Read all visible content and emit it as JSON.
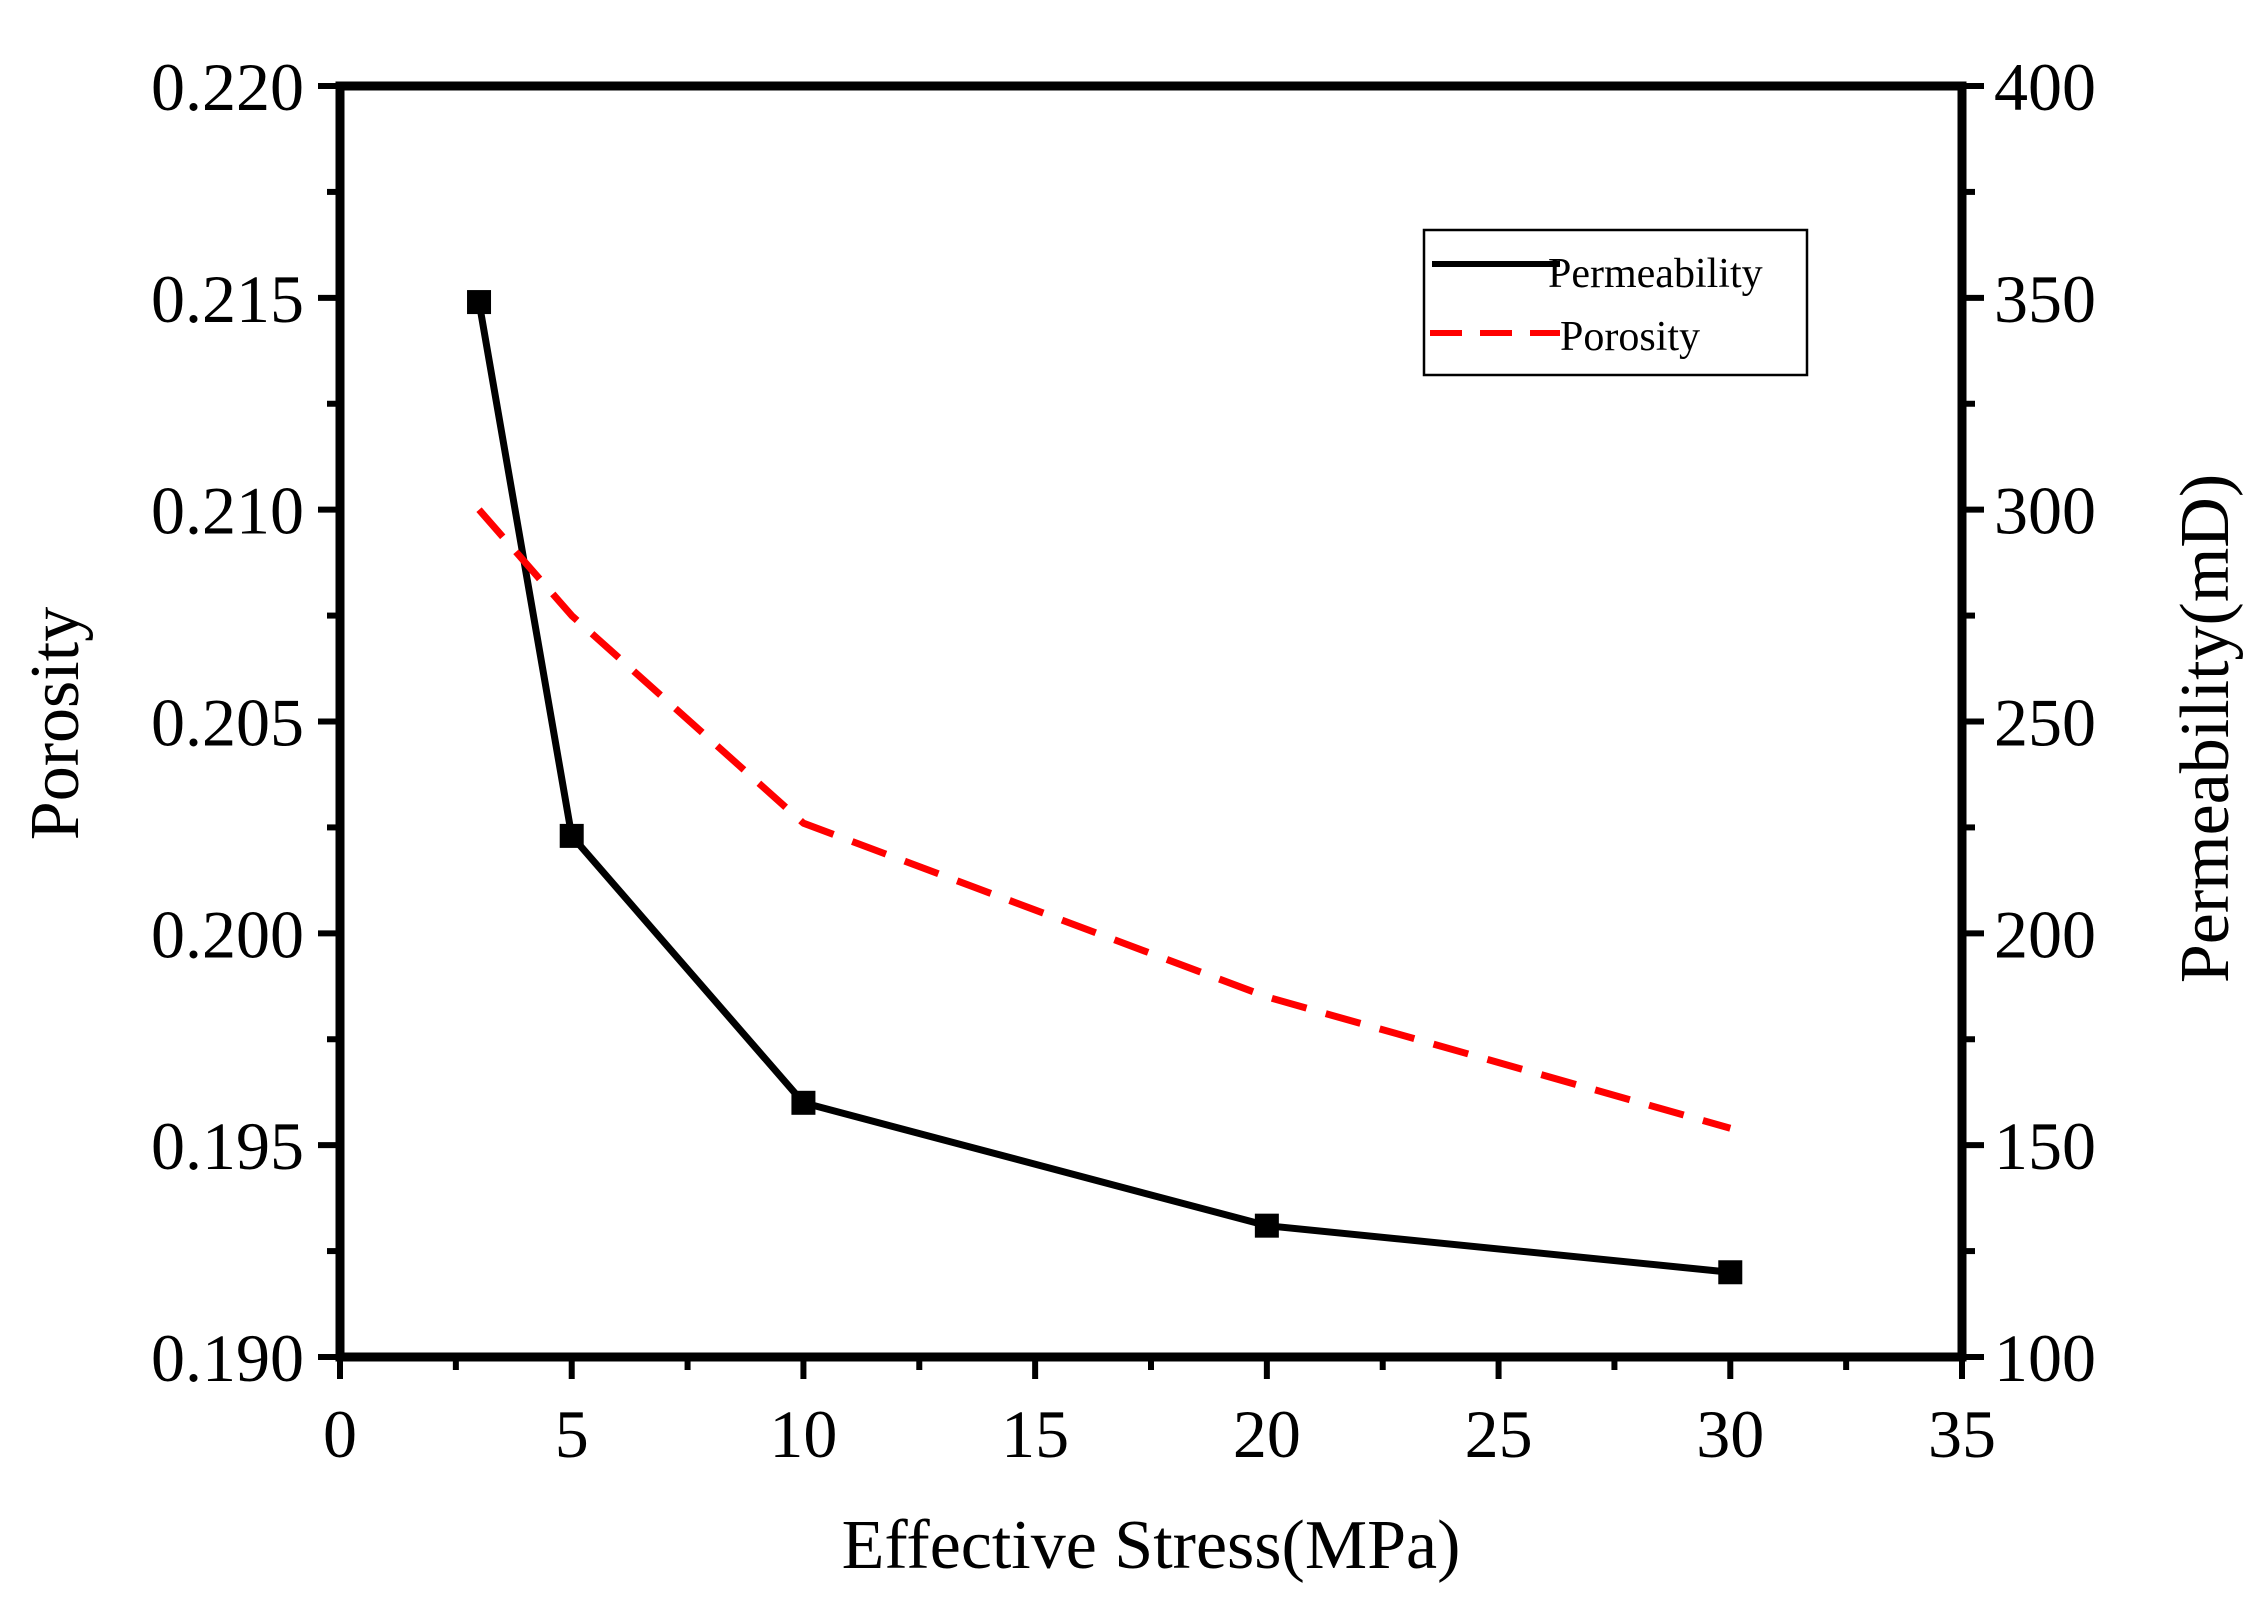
{
  "chart_data": {
    "type": "line",
    "title": "",
    "xlabel": "Effective Stress(MPa)",
    "ylabel_left": "Porosity",
    "ylabel_right": "Permeability(mD)",
    "xlim": [
      0,
      35
    ],
    "ylim_left": [
      0.19,
      0.22
    ],
    "ylim_right": [
      100,
      400
    ],
    "x_ticks": [
      "0",
      "5",
      "10",
      "15",
      "20",
      "25",
      "30",
      "35"
    ],
    "y_left_ticks": [
      "0.190",
      "0.195",
      "0.200",
      "0.205",
      "0.210",
      "0.215",
      "0.220"
    ],
    "y_right_ticks": [
      "100",
      "150",
      "200",
      "250",
      "300",
      "350",
      "400"
    ],
    "legend_position": "top-right",
    "series": [
      {
        "name": "Permeability",
        "axis": "right",
        "color": "#000000",
        "style": "solid",
        "marker": "square",
        "x": [
          3,
          5,
          10,
          20,
          30
        ],
        "values": [
          349,
          223,
          160,
          131,
          120
        ]
      },
      {
        "name": "Porosity",
        "axis": "left",
        "color": "#ff0000",
        "style": "dashed",
        "marker": "none",
        "x": [
          3,
          5,
          10,
          20,
          30
        ],
        "values": [
          0.21,
          0.2075,
          0.2026,
          0.1985,
          0.1954
        ]
      }
    ]
  }
}
